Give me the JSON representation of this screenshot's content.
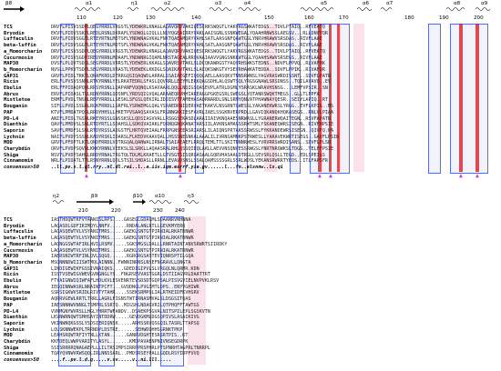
{
  "block1": {
    "ss_labels": [
      "β8",
      "α1",
      "η1",
      "α2",
      "α3",
      "α4",
      "α5",
      "α6",
      "α7",
      "α8",
      "α9"
    ],
    "tick_numbers": [
      "110",
      "120",
      "130",
      "140",
      "150",
      "160",
      "170",
      "180",
      "190",
      "200"
    ],
    "rows": [
      {
        "name": "TCS",
        "seq": "DRVYLPISVSSDPLQEGYRRDLVRGSTLYDEWKRLKNAGLAQAVQRVVAKIQESCRKSWQGTLYAKVRGSWKATEDGS..TDVLPTAIQ..RFVEATQ"
      },
      {
        "name": "Bryodin",
        "seq": "EKVFLPIDVSSKPLREDLRSNLDKRAFLYSDWQLGIQLLLNQYQGEAIRRYVAKLAAISGNLSSNKWEGALYQAAHRNWSSLAEGSV...RLLDNVYQR"
      },
      {
        "name": "Luffaculin",
        "seq": "DRVFLPIDVSGGTLRTEYRTNLMDTSFLYNDWNAGVKALFNKTQAEAMQRYVAHLSATLAASGNFQAWTGSLYNRVHRAWVSRSDAS..RIVFLAAE"
      },
      {
        "name": "beta-luffin",
        "seq": "DRVFLPIDVSGGTLRTEYRTNLMDTSFLYNDWNAGVKALFNKTQAEAMQRYVAHLSATLAASGNFQAWTGSLYNRVHRAWVSRSDAS..RIVFLAAE"
      },
      {
        "name": "a_Momorcharin",
        "seq": "DRVYLPISVSSDPLQEGYRRDLVRGSTLYDEWKRLKNAGLAQAVQRVVAKIQESCRKSWQGTLYAKVRGSWKATEDGS..TDVLPTAIQ..RFVEATQ"
      },
      {
        "name": "Cucurmosin",
        "seq": "DRVYLPISVSGDPIREDYRRNLMDAAFLYNDWNRGIQAMLNRSTAGEALRRQVAAIAAVVGNGSNKKWTGGLYQAAHSAWVSRSEGS..RIVFLAAE"
      },
      {
        "name": "MAP30",
        "seq": "DVSFLPLQVTSDSLSEGYRRDLVRRSTLYDEWERLKKAGLSQAVRSVTAKLSLDCQKAWRGSTYAQVRHSWKSTEDNS..NDVFLPPVQ..RLVAFHK"
      },
      {
        "name": "b_Momorcharin",
        "seq": "NVSLLPPKVTSDPLSEGYRRDLVRASTLYDEWEKLKKDGLSQAIKAVTAKLSLACQKSWKGTVYSEVRHAWKATEDDA..SDVFLPPIK..RIVAFQR"
      },
      {
        "name": "GAP31",
        "seq": "GRVFLPIDLTRKTLQNAFKRDLDTRRGQSIQAQWDLARRALSSAIAEGEFIQQQLAELLAASQKVTNNSRWNSLYAGVRASWRDISSNT..SDVFLPATR"
      },
      {
        "name": "Ricin",
        "seq": "ERLFLPVSVSSNNLRTKYRNNLYELRKATEDRLSFASLQQVRRLLEEYMLERKQAGSDHLALQSWTSQLYRGSGNAWLSRSDNSS..TQILAVAVQ..EV"
      },
      {
        "name": "Ebulin",
        "seq": "ERLFFPIDAQPQNLRRSYRSNLLQAPANFVQQNQLKSAVAARLQQLLNQIGSQASEVPLATRLDGMLYSRASKLWRAVHSNSG...LEMFVPSIR..SN"
      },
      {
        "name": "Abrus",
        "seq": "ERVFLPIDASLTSLRDNYRRNLQDSNFLYRDSQIGVQALARAAEQRVHHIAREAGGPGKEGSRLSWEGSLYQTANRSWQKTMEGS..GLLTLPPFA"
      },
      {
        "name": "Mistletoe",
        "seq": "ERMFLPVDLTNSNLREPYRRDLLSESKLSFGSLQEKIRLIDDISVTFAMEHASAQRNARDLSNLSRMYQNVATPHAWNAYQESR..SEIYLAPIQ..RT"
      },
      {
        "name": "Bouganin",
        "seq": "SIFLLPVDLSSGRLRGKFRRDLLSRFRLYSRWEMGLQALYSRAEDRNIQERVAETKAKVLNSGRNTGWESSLYAKANEKWRSLYRGG..EVFLKPIG..MS"
      },
      {
        "name": "PAP",
        "seq": "KTVFLPMDATPQSLRRDYHHSLLHKETPVSAAQSAVASLFRGNNGKKIESFAVRLIAELSSGKNVERPRDLLGAVIQKANQKHQKASEGS..RNLVLPIAA"
      },
      {
        "name": "PD-L4",
        "seq": "ANIFLPIDLTGSNLRKEYRSSLGNSSKSLLQDSIAGVVALLRSGGSEKASDLARAIIAIVKNQAAESNRWASLLYGRANERWQAITEGN..RSVFAPATR"
      },
      {
        "name": "Dianthin",
        "seq": "QAVFLPMDVSLSNLRTDYRTLLSDAHSLLSDKQVAIAKLFQRNQGNQKANATARSIILAVKNSAMAGSSRWTSMLYSKANEQWRSISEGN..RIVFNPSIE"
      },
      {
        "name": "Saporin",
        "seq": "SAVFLPMDFSLSNLRTDYRSSLADGSTFLHRTQVEIAALFRRPGNSEEASRIARSLILAIQNSPRTAKSSRWSSLFYKKANDEWRSISEGN..QIVFQ.PA"
      },
      {
        "name": "Lychnin",
        "seq": "NAIFLPVDYSSSNLKADYRSKLIDARSLFLKEDVKAAVQALLHSSSNESNKALAAALILIVRNSAMNKPSTRWESLLYARAVEKWRTISEGS..GAVFLPSIR"
      },
      {
        "name": "MOD",
        "seq": "GRVFLPFDPTLKTLQNDFRRDLVDTRGQALQANWALIRNALTSAIAEAEFLRRQLTEMLTTLSKITNNNRWESLYVRVRRSWRDISANS..SDVFLPLSR"
      },
      {
        "name": "Charybdin",
        "seq": "QRVFLPVDPSQVNLKNKYRNNLVEEKSLSLSRKLLAQAASRALRHLQSSQIEQLAKLLAEVVNSQNVESSRWGSLYNRTNRQWKSLTDGS..TELFFPSIE"
      },
      {
        "name": "Shiga",
        "seq": "NSVYLPVDYSAHGLRRDYRNALTRGTQLTDLMLKRAETLLGTVSGTSISQRGASAALGQRVHASAALDTRGLLSEVSRLQSLLTEGD..EDLSPEIGS"
      },
      {
        "name": "Cinnamomin",
        "seq": "NRLFLPIDATLTTLRSNYRRNLQDLSTSILSHDASLLRRNLLEVAVDSNSLSSALQAMSSSSGRLSSRLWDSLYEKANSRWRRTYEDS..ITLFAPSFR"
      }
    ],
    "consensus": {
      "name": "consensus>50",
      "seq": "..ll.pv.v.l.ql.rry..nl.dl.rai..l..a.iiv.iqm.esrrf.yie.gv......l...fn..elsnnw..ls.qi"
    },
    "markers": [
      "▲",
      "▲",
      "▲",
      "▲",
      "▲",
      "▲"
    ]
  },
  "block2": {
    "ss_labels": [
      "η2",
      "β9",
      "β10",
      "α10",
      "η3"
    ],
    "tick_numbers": [
      "210",
      "220",
      "230",
      "240"
    ],
    "rows": [
      {
        "name": "TCS",
        "seq": "IASTHDQWTKFVYAANISLRPS....GASEGLGDALMLSDAANRVNHNNA"
      },
      {
        "name": "Bryodin",
        "seq": "LAQASDLGDFIRIMQYLNNFV......RNDALANLRTLLGEVKMYERQ"
      },
      {
        "name": "Luffaculin",
        "seq": "LAQASQEWTVLVSYANITMRS.....GAEKLSNTGTPIRNIALRKATRNWR"
      },
      {
        "name": "beta-luffin",
        "seq": "LAQASQEWTVLVSYANITMRS.....GAEKLSNTGTPIRNIALRKATRNWR"
      },
      {
        "name": "a_Momorcharin",
        "seq": "LAQNGGSWTAFIRLNVILRSMV.....SGKSMGSLDALLLRNRTAINTANVSRWRTSIIRDKY"
      },
      {
        "name": "Cucurmosin",
        "seq": "LAQASQEWTVLVSYANITMRS.....GAEKLSNTGTPIRNIALRKATRNWR"
      },
      {
        "name": "MAP30",
        "seq": "IAERSNIWTRFINLQVLSQGQ......RGRGRGSASTEVIQNRSPTILGQA"
      },
      {
        "name": "b_Momorcharin",
        "seq": "MSQNNNDWIIISWTMQLAINNN..FWNNINRNSLNSEFNGRAVLLQNGTA"
      },
      {
        "name": "GAP31",
        "seq": "LINDIGEWIKFGSSIVNAIQKS....GDEDIGIPVLSLVRGQLNLQRMR.KDN"
      },
      {
        "name": "Ricin",
        "seq": "ISSTVSEWIGVWEVGVNGNGLYS..FNGRSEVVASTGGRLDSTIIAGVRLDAATTRT"
      },
      {
        "name": "Ebulin",
        "seq": "FTYAIGNWIQIWFAFLHDLKVLESVENRTEVSDSDTGQPSALPISVGVIELNVPVKLRSV"
      },
      {
        "name": "Abrus",
        "seq": "IEGQINNWASRLNRAINTPCFT...GVQDNGLPVGIMTLDPS..ENYVGHIWR"
      },
      {
        "name": "Mistletoe",
        "seq": "SSRSIGKWVSRIDLRIVTYTAHR....SSEKSRMPQLIALRTKEIDFKVHSRV"
      },
      {
        "name": "Bouganin",
        "seq": "AQRRVGEWLRRTLTRRLLAGRLFIGNSTWTIRNASMVALSLDSGSITQAS"
      },
      {
        "name": "PAP",
        "seq": "IAESNNNWVNNGLTSMPRLSSRTQ..MIGSHLNDAGVRILQTPHQFFTAWTGS"
      },
      {
        "name": "PD-L4",
        "seq": "VVNMGNYWVRSLLHGLYHRRTWFANDV..DSAEKPSGVALNITSPILEPLSGSKVTN"
      },
      {
        "name": "Dianthin",
        "seq": "LKVNWRNQWTSMHSAYINTDDRW.....GEVDGKMLDGSQPIVSLASAIKIVG"
      },
      {
        "name": "Saporin",
        "seq": "VKINWNQKGSSLYSDSIERIQNSK.....ARHSSRVQSGQILTASRLTTAPSQ"
      },
      {
        "name": "Lychnin",
        "seq": "LQLSKNNWEKPLTRRNDYLDSTRE......SEHWDQHHSGRNKTPKP"
      },
      {
        "name": "MOD",
        "seq": "LEAHSRQWTRFIYTNLLKTAN......GANRVDGHTESRSRTPIS..KT"
      },
      {
        "name": "Charybdin",
        "seq": "KKFDEQLWWPVARITYLASYL.......KMDPAVAENPNIVNSEGDRPK"
      },
      {
        "name": "Shiga",
        "seq": "SSISRRRRQNAGAEPLLLILTRSIMPSIRRPPRSPHRLPTSPNRHTAGPRLTNRRPL"
      },
      {
        "name": "Cinnamomin",
        "seq": "TQAYQVNWVRWSQQLIRLNNSSARL..PMDSRSEYPALLGQDLRSYIDPFVVQ"
      }
    ],
    "consensus": {
      "name": "consensus>50",
      "seq": "....f..pv.l.d.q.....v.sv.....v..ni.lll....."
    }
  },
  "colors": {
    "box_border": "#5b6fd6",
    "conserved_red": "#d8262a",
    "marker": "#b043d6"
  }
}
